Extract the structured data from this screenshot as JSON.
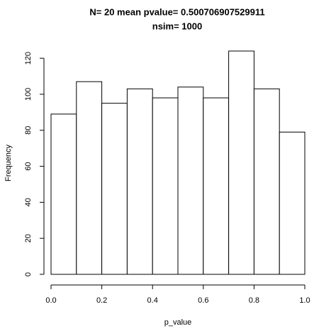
{
  "chart_data": {
    "type": "histogram",
    "title": [
      "N= 20  mean pvalue= 0.500706907529911",
      "nsim= 1000"
    ],
    "x_label": "p_value",
    "y_label": "Frequency",
    "bins": [
      0,
      0.1,
      0.2,
      0.3,
      0.4,
      0.5,
      0.6,
      0.7,
      0.8,
      0.9,
      1
    ],
    "counts": [
      89,
      107,
      95,
      103,
      98,
      104,
      98,
      124,
      103,
      79
    ],
    "color": "#ffffff",
    "xlim": [
      0,
      1
    ],
    "xticks": [
      {
        "value": 0,
        "label": "0.0"
      },
      0.2,
      0.4,
      0.6,
      0.8,
      {
        "value": 1,
        "label": "1.0"
      }
    ],
    "ylim": [
      0,
      124
    ],
    "yticks": [
      0,
      20,
      40,
      60,
      80,
      100,
      120
    ],
    "grid": false
  }
}
